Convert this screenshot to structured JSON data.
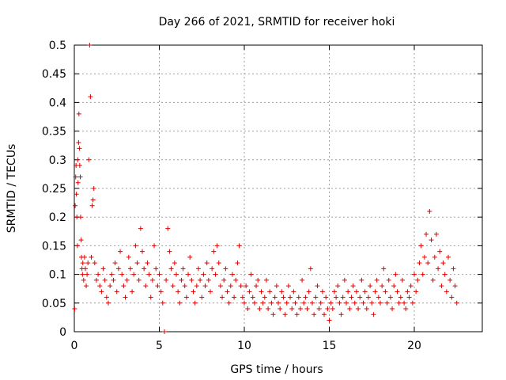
{
  "chart_data": {
    "type": "scatter",
    "title": "Day 266 of 2021, SRMTID for receiver hoki",
    "xlabel": "GPS time / hours",
    "ylabel": "SRMTID / TECUs",
    "xlim": [
      0,
      24
    ],
    "ylim": [
      0,
      0.5
    ],
    "x_ticks": [
      0,
      5,
      10,
      15,
      20
    ],
    "x_tick_labels": [
      "0",
      "5",
      "10",
      "15",
      "20"
    ],
    "y_ticks": [
      0,
      0.05,
      0.1,
      0.15,
      0.2,
      0.25,
      0.3,
      0.35,
      0.4,
      0.45,
      0.5
    ],
    "y_tick_labels": [
      "0",
      "0.05",
      "0.1",
      "0.15",
      "0.2",
      "0.25",
      "0.3",
      "0.35",
      "0.4",
      "0.45",
      "0.5"
    ],
    "grid": true,
    "marker": "+",
    "color": "#e00000",
    "series": [
      {
        "name": "SRMTID",
        "points": [
          [
            0.02,
            0.04
          ],
          [
            0.05,
            0.22
          ],
          [
            0.08,
            0.27
          ],
          [
            0.1,
            0.29
          ],
          [
            0.12,
            0.24
          ],
          [
            0.15,
            0.2
          ],
          [
            0.18,
            0.15
          ],
          [
            0.2,
            0.3
          ],
          [
            0.22,
            0.26
          ],
          [
            0.25,
            0.33
          ],
          [
            0.27,
            0.38
          ],
          [
            0.3,
            0.32
          ],
          [
            0.32,
            0.29
          ],
          [
            0.35,
            0.27
          ],
          [
            0.37,
            0.2
          ],
          [
            0.4,
            0.16
          ],
          [
            0.42,
            0.13
          ],
          [
            0.45,
            0.11
          ],
          [
            0.48,
            0.1
          ],
          [
            0.5,
            0.12
          ],
          [
            0.55,
            0.09
          ],
          [
            0.6,
            0.13
          ],
          [
            0.65,
            0.11
          ],
          [
            0.7,
            0.08
          ],
          [
            0.75,
            0.1
          ],
          [
            0.8,
            0.12
          ],
          [
            0.85,
            0.3
          ],
          [
            0.9,
            0.5
          ],
          [
            0.95,
            0.41
          ],
          [
            1.0,
            0.13
          ],
          [
            1.05,
            0.22
          ],
          [
            1.1,
            0.23
          ],
          [
            1.15,
            0.25
          ],
          [
            1.2,
            0.12
          ],
          [
            1.3,
            0.09
          ],
          [
            1.4,
            0.1
          ],
          [
            1.5,
            0.08
          ],
          [
            1.6,
            0.07
          ],
          [
            1.7,
            0.11
          ],
          [
            1.8,
            0.09
          ],
          [
            1.9,
            0.06
          ],
          [
            2.0,
            0.05
          ],
          [
            2.1,
            0.08
          ],
          [
            2.2,
            0.1
          ],
          [
            2.3,
            0.09
          ],
          [
            2.4,
            0.12
          ],
          [
            2.5,
            0.07
          ],
          [
            2.6,
            0.11
          ],
          [
            2.7,
            0.14
          ],
          [
            2.8,
            0.1
          ],
          [
            2.9,
            0.08
          ],
          [
            3.0,
            0.06
          ],
          [
            3.1,
            0.09
          ],
          [
            3.2,
            0.13
          ],
          [
            3.3,
            0.11
          ],
          [
            3.4,
            0.07
          ],
          [
            3.5,
            0.1
          ],
          [
            3.6,
            0.15
          ],
          [
            3.7,
            0.12
          ],
          [
            3.8,
            0.09
          ],
          [
            3.9,
            0.18
          ],
          [
            4.0,
            0.14
          ],
          [
            4.1,
            0.11
          ],
          [
            4.2,
            0.08
          ],
          [
            4.3,
            0.12
          ],
          [
            4.4,
            0.1
          ],
          [
            4.5,
            0.06
          ],
          [
            4.6,
            0.09
          ],
          [
            4.7,
            0.15
          ],
          [
            4.8,
            0.11
          ],
          [
            4.9,
            0.08
          ],
          [
            5.0,
            0.1
          ],
          [
            5.1,
            0.07
          ],
          [
            5.2,
            0.05
          ],
          [
            5.3,
            0.0
          ],
          [
            5.4,
            0.09
          ],
          [
            5.5,
            0.18
          ],
          [
            5.6,
            0.14
          ],
          [
            5.7,
            0.11
          ],
          [
            5.8,
            0.08
          ],
          [
            5.9,
            0.12
          ],
          [
            6.0,
            0.1
          ],
          [
            6.1,
            0.07
          ],
          [
            6.2,
            0.05
          ],
          [
            6.3,
            0.09
          ],
          [
            6.4,
            0.11
          ],
          [
            6.5,
            0.08
          ],
          [
            6.6,
            0.06
          ],
          [
            6.7,
            0.1
          ],
          [
            6.8,
            0.13
          ],
          [
            6.9,
            0.09
          ],
          [
            7.0,
            0.07
          ],
          [
            7.1,
            0.05
          ],
          [
            7.2,
            0.08
          ],
          [
            7.3,
            0.11
          ],
          [
            7.4,
            0.09
          ],
          [
            7.5,
            0.06
          ],
          [
            7.6,
            0.1
          ],
          [
            7.7,
            0.08
          ],
          [
            7.8,
            0.12
          ],
          [
            7.9,
            0.09
          ],
          [
            8.0,
            0.07
          ],
          [
            8.1,
            0.11
          ],
          [
            8.2,
            0.14
          ],
          [
            8.3,
            0.1
          ],
          [
            8.4,
            0.15
          ],
          [
            8.5,
            0.12
          ],
          [
            8.6,
            0.08
          ],
          [
            8.7,
            0.06
          ],
          [
            8.8,
            0.09
          ],
          [
            8.9,
            0.11
          ],
          [
            9.0,
            0.07
          ],
          [
            9.1,
            0.05
          ],
          [
            9.2,
            0.08
          ],
          [
            9.3,
            0.1
          ],
          [
            9.4,
            0.06
          ],
          [
            9.5,
            0.09
          ],
          [
            9.6,
            0.12
          ],
          [
            9.7,
            0.15
          ],
          [
            9.8,
            0.08
          ],
          [
            9.9,
            0.06
          ],
          [
            10.0,
            0.05
          ],
          [
            10.1,
            0.08
          ],
          [
            10.2,
            0.04
          ],
          [
            10.3,
            0.07
          ],
          [
            10.4,
            0.1
          ],
          [
            10.5,
            0.06
          ],
          [
            10.6,
            0.05
          ],
          [
            10.7,
            0.08
          ],
          [
            10.8,
            0.09
          ],
          [
            10.9,
            0.04
          ],
          [
            11.0,
            0.07
          ],
          [
            11.1,
            0.05
          ],
          [
            11.2,
            0.06
          ],
          [
            11.3,
            0.09
          ],
          [
            11.4,
            0.04
          ],
          [
            11.5,
            0.07
          ],
          [
            11.6,
            0.05
          ],
          [
            11.7,
            0.03
          ],
          [
            11.8,
            0.06
          ],
          [
            11.9,
            0.08
          ],
          [
            12.0,
            0.05
          ],
          [
            12.1,
            0.04
          ],
          [
            12.2,
            0.07
          ],
          [
            12.3,
            0.06
          ],
          [
            12.4,
            0.03
          ],
          [
            12.5,
            0.05
          ],
          [
            12.6,
            0.08
          ],
          [
            12.7,
            0.06
          ],
          [
            12.8,
            0.04
          ],
          [
            12.9,
            0.07
          ],
          [
            13.0,
            0.05
          ],
          [
            13.1,
            0.03
          ],
          [
            13.2,
            0.06
          ],
          [
            13.3,
            0.04
          ],
          [
            13.4,
            0.09
          ],
          [
            13.5,
            0.05
          ],
          [
            13.6,
            0.06
          ],
          [
            13.7,
            0.04
          ],
          [
            13.8,
            0.07
          ],
          [
            13.9,
            0.11
          ],
          [
            14.0,
            0.05
          ],
          [
            14.1,
            0.03
          ],
          [
            14.2,
            0.06
          ],
          [
            14.3,
            0.08
          ],
          [
            14.4,
            0.04
          ],
          [
            14.5,
            0.05
          ],
          [
            14.6,
            0.07
          ],
          [
            14.7,
            0.03
          ],
          [
            14.8,
            0.06
          ],
          [
            14.9,
            0.04
          ],
          [
            15.0,
            0.02
          ],
          [
            15.1,
            0.05
          ],
          [
            15.2,
            0.04
          ],
          [
            15.3,
            0.07
          ],
          [
            15.4,
            0.06
          ],
          [
            15.5,
            0.08
          ],
          [
            15.6,
            0.05
          ],
          [
            15.7,
            0.03
          ],
          [
            15.8,
            0.06
          ],
          [
            15.9,
            0.09
          ],
          [
            16.0,
            0.05
          ],
          [
            16.1,
            0.07
          ],
          [
            16.2,
            0.04
          ],
          [
            16.3,
            0.06
          ],
          [
            16.4,
            0.08
          ],
          [
            16.5,
            0.05
          ],
          [
            16.6,
            0.07
          ],
          [
            16.7,
            0.04
          ],
          [
            16.8,
            0.06
          ],
          [
            16.9,
            0.09
          ],
          [
            17.0,
            0.05
          ],
          [
            17.1,
            0.07
          ],
          [
            17.2,
            0.04
          ],
          [
            17.3,
            0.06
          ],
          [
            17.4,
            0.08
          ],
          [
            17.5,
            0.05
          ],
          [
            17.6,
            0.03
          ],
          [
            17.7,
            0.07
          ],
          [
            17.8,
            0.09
          ],
          [
            17.9,
            0.06
          ],
          [
            18.0,
            0.05
          ],
          [
            18.1,
            0.08
          ],
          [
            18.2,
            0.11
          ],
          [
            18.3,
            0.07
          ],
          [
            18.4,
            0.05
          ],
          [
            18.5,
            0.09
          ],
          [
            18.6,
            0.06
          ],
          [
            18.7,
            0.04
          ],
          [
            18.8,
            0.08
          ],
          [
            18.9,
            0.1
          ],
          [
            19.0,
            0.07
          ],
          [
            19.1,
            0.05
          ],
          [
            19.2,
            0.06
          ],
          [
            19.3,
            0.09
          ],
          [
            19.4,
            0.05
          ],
          [
            19.5,
            0.04
          ],
          [
            19.6,
            0.07
          ],
          [
            19.7,
            0.06
          ],
          [
            19.8,
            0.08
          ],
          [
            19.9,
            0.05
          ],
          [
            20.0,
            0.1
          ],
          [
            20.1,
            0.07
          ],
          [
            20.2,
            0.09
          ],
          [
            20.3,
            0.12
          ],
          [
            20.4,
            0.15
          ],
          [
            20.5,
            0.1
          ],
          [
            20.6,
            0.13
          ],
          [
            20.7,
            0.17
          ],
          [
            20.8,
            0.12
          ],
          [
            20.9,
            0.21
          ],
          [
            21.0,
            0.16
          ],
          [
            21.1,
            0.09
          ],
          [
            21.2,
            0.13
          ],
          [
            21.3,
            0.17
          ],
          [
            21.4,
            0.11
          ],
          [
            21.5,
            0.14
          ],
          [
            21.6,
            0.08
          ],
          [
            21.7,
            0.12
          ],
          [
            21.8,
            0.1
          ],
          [
            21.9,
            0.07
          ],
          [
            22.0,
            0.13
          ],
          [
            22.1,
            0.09
          ],
          [
            22.2,
            0.06
          ],
          [
            22.3,
            0.11
          ],
          [
            22.4,
            0.08
          ],
          [
            22.5,
            0.05
          ]
        ]
      }
    ]
  }
}
